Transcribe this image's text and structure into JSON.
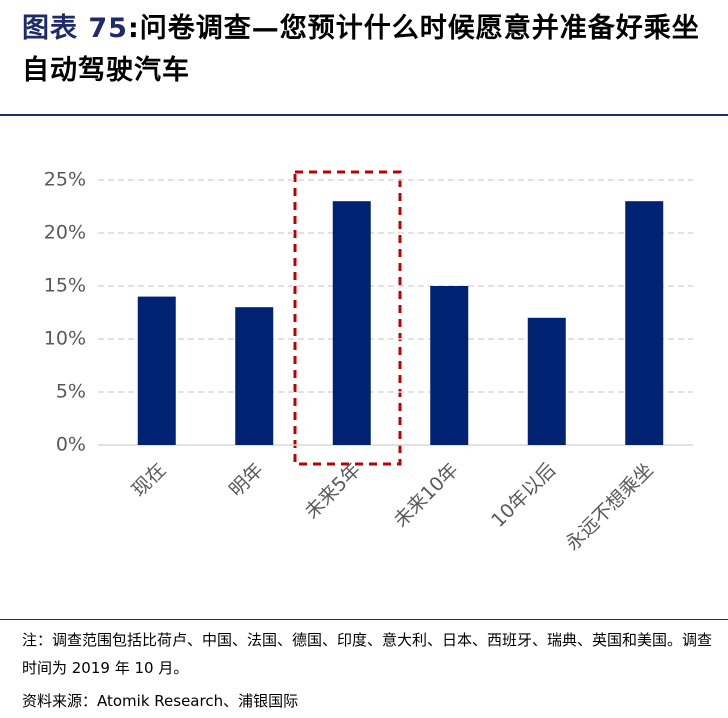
{
  "chart_data": {
    "type": "bar",
    "figure_label": "图表 75",
    "title": ":问卷调查—您预计什么时候愿意并准备好乘坐自动驾驶汽车",
    "categories": [
      "现在",
      "明年",
      "未来5年",
      "未来10年",
      "10年以后",
      "永远不想乘坐"
    ],
    "values": [
      14,
      13,
      23,
      15,
      12,
      23
    ],
    "color": "#002273",
    "ylim": [
      0,
      25
    ],
    "yticks": [
      {
        "value": 0,
        "label": "0%"
      },
      {
        "value": 5,
        "label": "5%"
      },
      {
        "value": 10,
        "label": "10%"
      },
      {
        "value": 15,
        "label": "15%"
      },
      {
        "value": 20,
        "label": "20%"
      },
      {
        "value": 25,
        "label": "25%"
      }
    ],
    "grid": true,
    "note": "注：调查范围包括比荷卢、中国、法国、德国、印度、意大利、日本、西班牙、瑞典、英国和美国。调查时间为 2019 年 10 月。",
    "source": "资料来源：Atomik Research、浦银国际"
  }
}
